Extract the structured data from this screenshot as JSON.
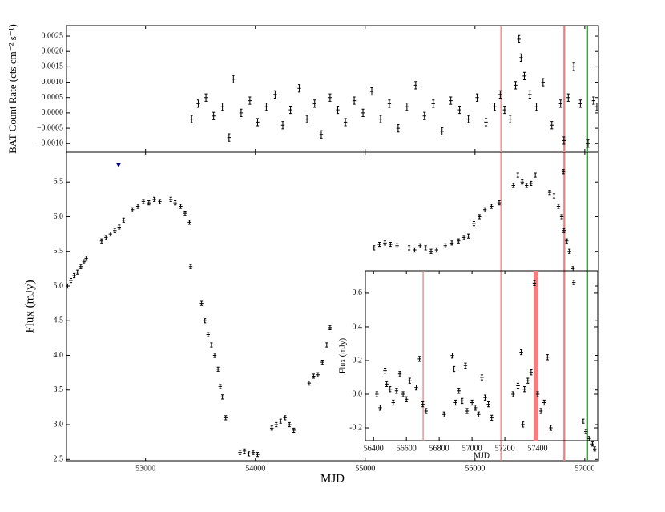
{
  "chart_data": [
    {
      "type": "scatter",
      "ylabel": "BAT Count Rate (cts cm⁻² s⁻¹)",
      "xlim": [
        52280,
        57125
      ],
      "ylim": [
        -0.00128,
        0.00284
      ],
      "yticks": [
        {
          "value": -0.001,
          "label": "−0.0010"
        },
        {
          "value": -0.0005,
          "label": "−0.0005"
        },
        {
          "value": 0,
          "label": "0.0000"
        },
        {
          "value": 0.0005,
          "label": "0.0005"
        },
        {
          "value": 0.001,
          "label": "0.0010"
        },
        {
          "value": 0.0015,
          "label": "0.0015"
        },
        {
          "value": 0.002,
          "label": "0.0020"
        },
        {
          "value": 0.0025,
          "label": "0.0025"
        }
      ],
      "series": [
        {
          "color": "#000000",
          "yerr": 0.00012,
          "x": [
            53420,
            53480,
            53550,
            53620,
            53700,
            53760,
            53800,
            53870,
            53950,
            54020,
            54100,
            54180,
            54250,
            54320,
            54400,
            54470,
            54540,
            54600,
            54680,
            54750,
            54820,
            54900,
            54980,
            55060,
            55140,
            55220,
            55300,
            55380,
            55460,
            55540,
            55620,
            55700,
            55780,
            55860,
            55940,
            56020,
            56100,
            56180,
            56230,
            56270,
            56320,
            56370,
            56400,
            56420,
            56450,
            56500,
            56560,
            56620,
            56700,
            56780,
            56810,
            56850,
            56900,
            56960,
            57030,
            57080,
            57110
          ],
          "y": [
            -0.0002,
            0.0003,
            0.0005,
            -0.0001,
            0.0002,
            -0.0008,
            0.0011,
            0.0,
            0.0004,
            -0.0003,
            0.0002,
            0.0006,
            -0.0004,
            0.0001,
            0.0008,
            -0.0002,
            0.0003,
            -0.0007,
            0.0005,
            0.0001,
            -0.0003,
            0.0004,
            0.0,
            0.0007,
            -0.0002,
            0.0003,
            -0.0005,
            0.0002,
            0.0009,
            -0.0001,
            0.0003,
            -0.0006,
            0.0004,
            0.0001,
            -0.0002,
            0.0005,
            -0.0003,
            0.0002,
            0.0006,
            0.0001,
            -0.0002,
            0.0009,
            0.0024,
            0.0018,
            0.0012,
            0.0006,
            0.0002,
            0.001,
            -0.0004,
            0.0003,
            -0.0009,
            0.0005,
            0.0015,
            0.0003,
            -0.001,
            0.0004,
            0.0002
          ]
        }
      ]
    },
    {
      "type": "scatter",
      "xlabel": "MJD",
      "ylabel": "Flux (mJy)",
      "xlim": [
        52280,
        57125
      ],
      "ylim": [
        2.48,
        6.93
      ],
      "xticks": [
        53000,
        54000,
        55000,
        56000,
        57000
      ],
      "yticks": [
        2.5,
        {
          "value": 3,
          "label": "3.0"
        },
        3.5,
        {
          "value": 4,
          "label": "4.0"
        },
        4.5,
        {
          "value": 5,
          "label": "5.0"
        },
        5.5,
        {
          "value": 6,
          "label": "6.0"
        },
        6.5
      ],
      "vlines": [
        {
          "x": 56236,
          "color": "#f08080"
        },
        {
          "x0": 56805,
          "x1": 56822,
          "color": "#f08080"
        },
        {
          "x": 57025,
          "color": "#2ca02c"
        }
      ],
      "upper_limits": {
        "x": [
          52754
        ],
        "y": [
          6.75
        ],
        "color": "#000080"
      },
      "series": [
        {
          "color": "#000000",
          "yerr": 0.03,
          "x": [
            52290,
            52320,
            52350,
            52380,
            52410,
            52440,
            52460,
            52600,
            52640,
            52680,
            52720,
            52760,
            52800,
            52880,
            52930,
            52980,
            53030,
            53080,
            53130,
            53230,
            53270,
            53320,
            53360,
            53400,
            53411,
            53510,
            53540,
            53570,
            53600,
            53630,
            53660,
            53680,
            53700,
            53730,
            53860,
            53900,
            53940,
            53980,
            54020,
            54150,
            54190,
            54230,
            54270,
            54310,
            54350,
            54490,
            54530,
            54570,
            54610,
            54650,
            54680,
            55080,
            55130,
            55180,
            55230,
            55290,
            55400,
            55450,
            55500,
            55550,
            55600,
            55650,
            55730,
            55790,
            55850,
            55900,
            55940,
            55990,
            56040,
            56090,
            56150,
            56220,
            56350,
            56390,
            56430,
            56470,
            56510,
            56550,
            56680,
            56720,
            56760,
            56790,
            56805,
            56810,
            56835,
            56860,
            56893,
            56900,
            56985,
            57010,
            57040,
            57070,
            57090
          ],
          "y": [
            5.0,
            5.08,
            5.15,
            5.2,
            5.28,
            5.35,
            5.4,
            5.65,
            5.7,
            5.75,
            5.8,
            5.85,
            5.95,
            6.1,
            6.15,
            6.22,
            6.2,
            6.25,
            6.22,
            6.25,
            6.2,
            6.15,
            6.05,
            5.92,
            5.28,
            4.75,
            4.5,
            4.3,
            4.15,
            4.0,
            3.8,
            3.55,
            3.4,
            3.1,
            2.6,
            2.62,
            2.58,
            2.6,
            2.57,
            2.95,
            3.0,
            3.05,
            3.1,
            3.0,
            2.92,
            3.6,
            3.7,
            3.72,
            3.9,
            4.15,
            4.4,
            5.55,
            5.6,
            5.62,
            5.6,
            5.58,
            5.55,
            5.52,
            5.58,
            5.55,
            5.5,
            5.52,
            5.58,
            5.62,
            5.65,
            5.7,
            5.72,
            5.9,
            6.0,
            6.1,
            6.15,
            6.2,
            6.45,
            6.6,
            6.5,
            6.45,
            6.48,
            6.6,
            6.35,
            6.3,
            6.15,
            6.0,
            6.65,
            5.8,
            5.65,
            5.5,
            5.25,
            5.05,
            3.05,
            2.9,
            2.8,
            2.72,
            2.65
          ]
        }
      ]
    },
    {
      "type": "scatter",
      "xlabel": "MJD",
      "ylabel": "Flux (mJy)",
      "xlim": [
        56350,
        57766
      ],
      "ylim": [
        -0.276,
        0.733
      ],
      "xticks": [
        56400,
        56600,
        56800,
        57000,
        57200,
        57400
      ],
      "yticks": [
        -0.2,
        {
          "value": 0,
          "label": "0.0"
        },
        0.2,
        0.4,
        0.6
      ],
      "vlines": [
        {
          "x": 56702,
          "color": "#f08080"
        },
        {
          "x0": 57375,
          "x1": 57405,
          "color": "#f08080"
        }
      ],
      "series": [
        {
          "color": "#000000",
          "yerr": 0.015,
          "x": [
            56420,
            56440,
            56470,
            56480,
            56500,
            56520,
            56540,
            56560,
            56580,
            56600,
            56620,
            56660,
            56680,
            56700,
            56720,
            56830,
            56880,
            56890,
            56900,
            56920,
            56940,
            56960,
            56970,
            57000,
            57020,
            57040,
            57060,
            57080,
            57100,
            57120,
            57250,
            57280,
            57300,
            57310,
            57320,
            57340,
            57360,
            57380,
            57400,
            57420,
            57440,
            57460,
            57480
          ],
          "y": [
            0.0,
            -0.08,
            0.14,
            0.06,
            0.03,
            -0.05,
            0.02,
            0.12,
            0.0,
            -0.03,
            0.08,
            0.04,
            0.21,
            -0.06,
            -0.1,
            -0.12,
            0.23,
            0.15,
            -0.05,
            0.02,
            -0.04,
            0.17,
            -0.1,
            -0.05,
            -0.08,
            -0.12,
            0.1,
            -0.02,
            -0.06,
            -0.14,
            0.0,
            0.05,
            0.25,
            -0.18,
            0.03,
            0.08,
            0.13,
            0.66,
            0.0,
            -0.1,
            -0.05,
            0.22,
            -0.2
          ]
        }
      ]
    }
  ]
}
